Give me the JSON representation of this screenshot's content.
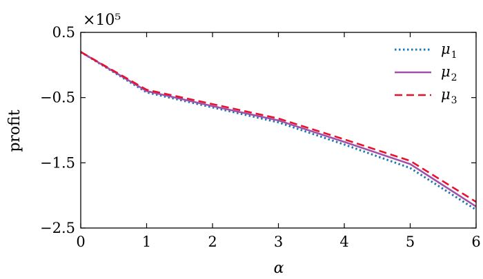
{
  "chart_data": {
    "type": "line",
    "title": "",
    "xlabel": "α",
    "ylabel": "profit",
    "y_scale_label": "×10⁵",
    "y_scale": "1e5",
    "xlim": [
      0,
      6
    ],
    "ylim": [
      -2.5,
      0.5
    ],
    "x_ticks": [
      "0",
      "1",
      "2",
      "3",
      "4",
      "5",
      "6"
    ],
    "y_ticks": [
      "0.5",
      "−0.5",
      "−1.5",
      "−2.5"
    ],
    "x": [
      0,
      1,
      2,
      3,
      4,
      5,
      6
    ],
    "legend_position": "top-right",
    "series": [
      {
        "name": "μ1",
        "name_base": "μ",
        "name_sub": "1",
        "color": "#1f77b4",
        "style": "dotted",
        "values": [
          0.2,
          -0.42,
          -0.65,
          -0.88,
          -1.22,
          -1.58,
          -2.22
        ]
      },
      {
        "name": "μ2",
        "name_base": "μ",
        "name_sub": "2",
        "color": "#a24fa8",
        "style": "solid",
        "values": [
          0.2,
          -0.4,
          -0.63,
          -0.85,
          -1.18,
          -1.52,
          -2.17
        ]
      },
      {
        "name": "μ3",
        "name_base": "μ",
        "name_sub": "3",
        "color": "#e8112d",
        "style": "dashed",
        "values": [
          0.2,
          -0.38,
          -0.6,
          -0.82,
          -1.14,
          -1.47,
          -2.1
        ]
      }
    ]
  }
}
